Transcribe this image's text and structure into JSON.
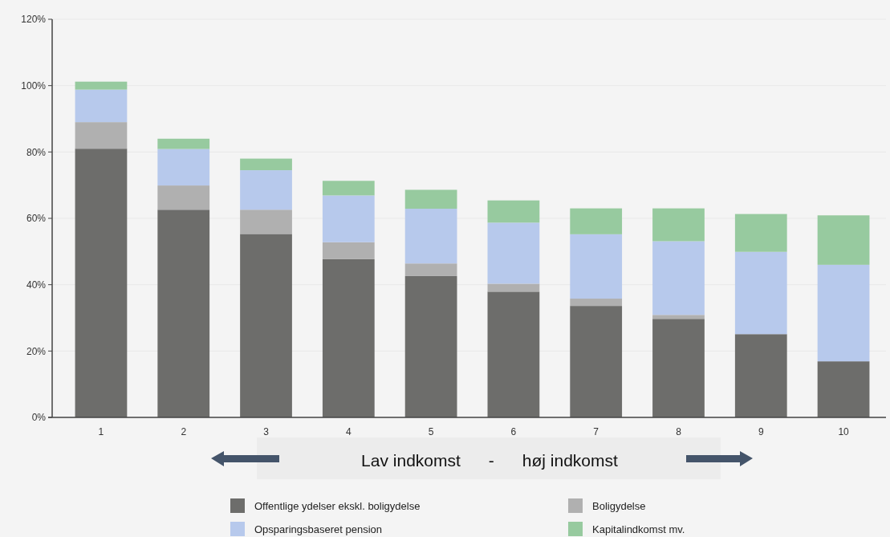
{
  "chart_data": {
    "type": "bar",
    "stacked": true,
    "categories": [
      "1",
      "2",
      "3",
      "4",
      "5",
      "6",
      "7",
      "8",
      "9",
      "10"
    ],
    "series": [
      {
        "name": "Offentlige ydelser ekskl. boligydelse",
        "color": "#6d6d6b",
        "values": [
          81,
          62.6,
          55.3,
          47.7,
          42.6,
          37.9,
          33.6,
          29.7,
          25.1,
          16.9
        ]
      },
      {
        "name": "Boligydelse",
        "color": "#b0b0b0",
        "values": [
          8,
          7.3,
          7.3,
          5.1,
          3.8,
          2.4,
          2.2,
          1.2,
          0,
          0
        ]
      },
      {
        "name": "Opsparingsbaseret pension",
        "color": "#b7c9ec",
        "values": [
          9.8,
          11,
          11.9,
          14.1,
          16.5,
          18.4,
          19.4,
          22.2,
          24.8,
          29.1
        ]
      },
      {
        "name": "Kapitalindkomst mv.",
        "color": "#97ca9f",
        "values": [
          2.4,
          3.1,
          3.5,
          4.4,
          5.7,
          6.7,
          7.8,
          9.9,
          11.4,
          14.9
        ]
      }
    ],
    "ylim": [
      0,
      120
    ],
    "yticks": [
      {
        "value": 0,
        "label": "0%"
      },
      {
        "value": 20,
        "label": "20%"
      },
      {
        "value": 40,
        "label": "40%"
      },
      {
        "value": 60,
        "label": "60%"
      },
      {
        "value": 80,
        "label": "80%"
      },
      {
        "value": 100,
        "label": "100%"
      },
      {
        "value": 120,
        "label": "120%"
      }
    ],
    "grid": "y",
    "legend": "bottom",
    "annotations": [
      "Lav indkomst      -      høj indkomst"
    ]
  }
}
